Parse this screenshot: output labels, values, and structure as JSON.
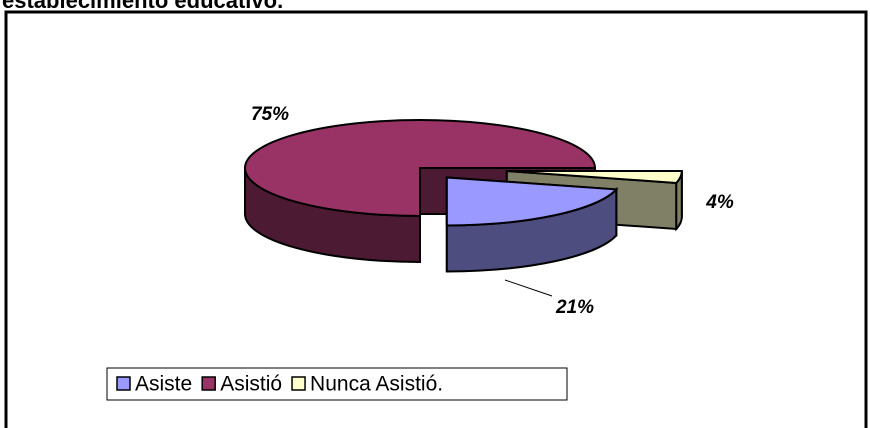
{
  "chart_data": {
    "type": "pie3d",
    "title": "establecimiento educativo.",
    "categories": [
      "Asiste",
      "Asistió",
      "Nunca Asistió."
    ],
    "values": [
      21,
      75,
      4
    ],
    "value_labels": [
      "21%",
      "75%",
      "4%"
    ],
    "colors": [
      "#9999ff",
      "#993366",
      "#ffffcc"
    ],
    "legend": "bottom-left"
  }
}
